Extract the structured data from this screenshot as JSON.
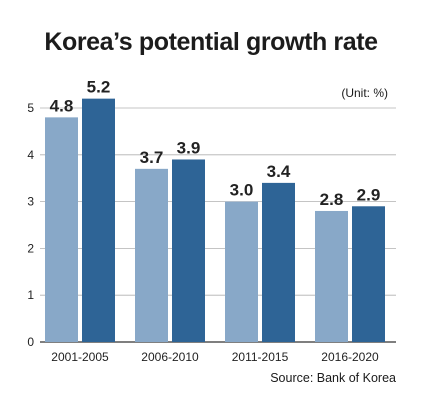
{
  "chart_data": {
    "type": "bar",
    "title": "Korea’s potential growth rate",
    "unit": "(Unit: %)",
    "source": "Source: Bank of Korea",
    "categories": [
      "2001-2005",
      "2006-2010",
      "2011-2015",
      "2016-2020"
    ],
    "series": [
      {
        "values": [
          4.8,
          3.7,
          3.0,
          2.8
        ],
        "labels": [
          "4.8",
          "3.7",
          "3.0",
          "2.8"
        ],
        "color": "#88a8c8"
      },
      {
        "values": [
          5.2,
          3.9,
          3.4,
          2.9
        ],
        "labels": [
          "5.2",
          "3.9",
          "3.4",
          "2.9"
        ],
        "color": "#2e6496"
      }
    ],
    "yticks": [
      "0",
      "1",
      "2",
      "3",
      "4",
      "5"
    ],
    "ylim": [
      0,
      5.5
    ],
    "grid": true,
    "gridline_color": "#b0b0b0"
  }
}
